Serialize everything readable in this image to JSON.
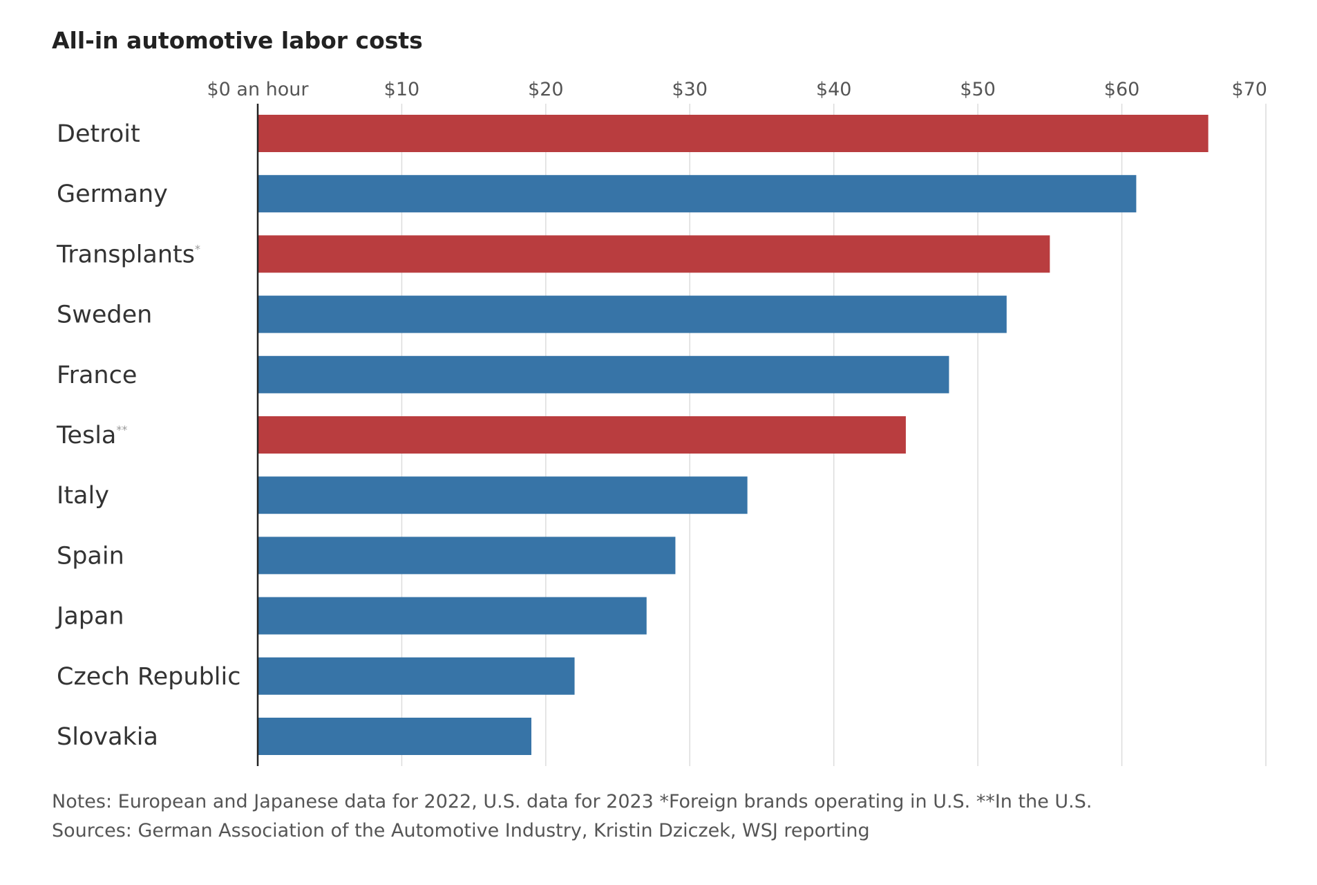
{
  "chart_data": {
    "type": "bar",
    "orientation": "horizontal",
    "title": "All-in automotive labor costs",
    "categories": [
      {
        "name": "Detroit",
        "marker": ""
      },
      {
        "name": "Germany",
        "marker": ""
      },
      {
        "name": "Transplants",
        "marker": "*"
      },
      {
        "name": "Sweden",
        "marker": ""
      },
      {
        "name": "France",
        "marker": ""
      },
      {
        "name": "Tesla",
        "marker": "**"
      },
      {
        "name": "Italy",
        "marker": ""
      },
      {
        "name": "Spain",
        "marker": ""
      },
      {
        "name": "Japan",
        "marker": ""
      },
      {
        "name": "Czech Republic",
        "marker": ""
      },
      {
        "name": "Slovakia",
        "marker": ""
      }
    ],
    "values": [
      66,
      61,
      55,
      52,
      48,
      45,
      34,
      29,
      27,
      22,
      19
    ],
    "highlight": [
      true,
      false,
      true,
      false,
      false,
      true,
      false,
      false,
      false,
      false,
      false
    ],
    "xlim": [
      0,
      70
    ],
    "xticks": [
      {
        "value": 0,
        "label": "$0 an hour"
      },
      {
        "value": 10,
        "label": "$10"
      },
      {
        "value": 20,
        "label": "$20"
      },
      {
        "value": 30,
        "label": "$30"
      },
      {
        "value": 40,
        "label": "$40"
      },
      {
        "value": 50,
        "label": "$50"
      },
      {
        "value": 60,
        "label": "$60"
      },
      {
        "value": 70,
        "label": "$70"
      }
    ],
    "xlabel": "",
    "ylabel": "",
    "grid": true,
    "legend": "none",
    "colors": {
      "highlight": "#b93d3f",
      "default": "#3774a7"
    },
    "notes": "Notes: European and Japanese data for 2022, U.S. data for 2023 *Foreign brands operating in U.S. **In the U.S.",
    "sources": "Sources: German Association of the Automotive Industry, Kristin Dziczek, WSJ reporting"
  }
}
